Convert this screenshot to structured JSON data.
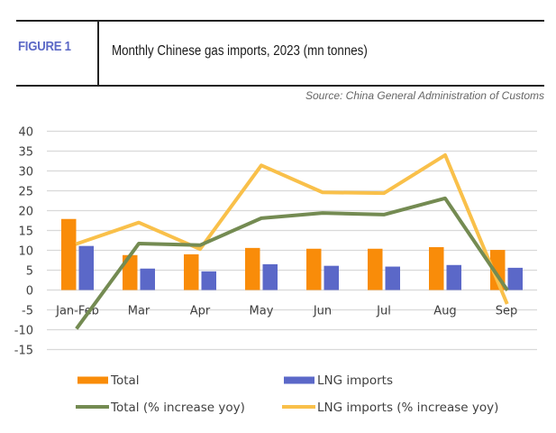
{
  "header": {
    "figure_label": "FIGURE 1",
    "title": "Monthly Chinese gas imports, 2023 (mn tonnes)",
    "source": "Source: China General Administration of Customs"
  },
  "colors": {
    "total": "#f98c09",
    "lng": "#5b68c8",
    "total_yoy": "#748b52",
    "lng_yoy": "#f9c04a",
    "grid": "#d9d9d9",
    "figure_label": "#5b68c6"
  },
  "chart_data": {
    "type": "bar",
    "title": "Monthly Chinese gas imports, 2023 (mn tonnes)",
    "xlabel": "",
    "ylabel": "",
    "ylim": [
      -15,
      40
    ],
    "yticks": [
      40,
      35,
      30,
      25,
      20,
      15,
      10,
      5,
      0,
      -5,
      -10,
      -15
    ],
    "grid": true,
    "legend_position": "bottom",
    "categories": [
      "Jan-Feb",
      "Mar",
      "Apr",
      "May",
      "Jun",
      "Jul",
      "Aug",
      "Sep"
    ],
    "series": [
      {
        "name": "Total",
        "type": "bar",
        "values": [
          17.9,
          8.8,
          9.0,
          10.6,
          10.4,
          10.4,
          10.8,
          10.1
        ]
      },
      {
        "name": "LNG imports",
        "type": "bar",
        "values": [
          11.1,
          5.4,
          4.7,
          6.5,
          6.1,
          5.9,
          6.3,
          5.6
        ]
      },
      {
        "name": "Total (% increase yoy)",
        "type": "line",
        "values": [
          -9.4,
          11.7,
          11.3,
          18.1,
          19.4,
          19.0,
          23.1,
          0.3
        ]
      },
      {
        "name": "LNG imports (% increase yoy)",
        "type": "line",
        "values": [
          11.7,
          17.0,
          10.3,
          31.4,
          24.6,
          24.4,
          34.0,
          -3.1
        ]
      }
    ]
  }
}
